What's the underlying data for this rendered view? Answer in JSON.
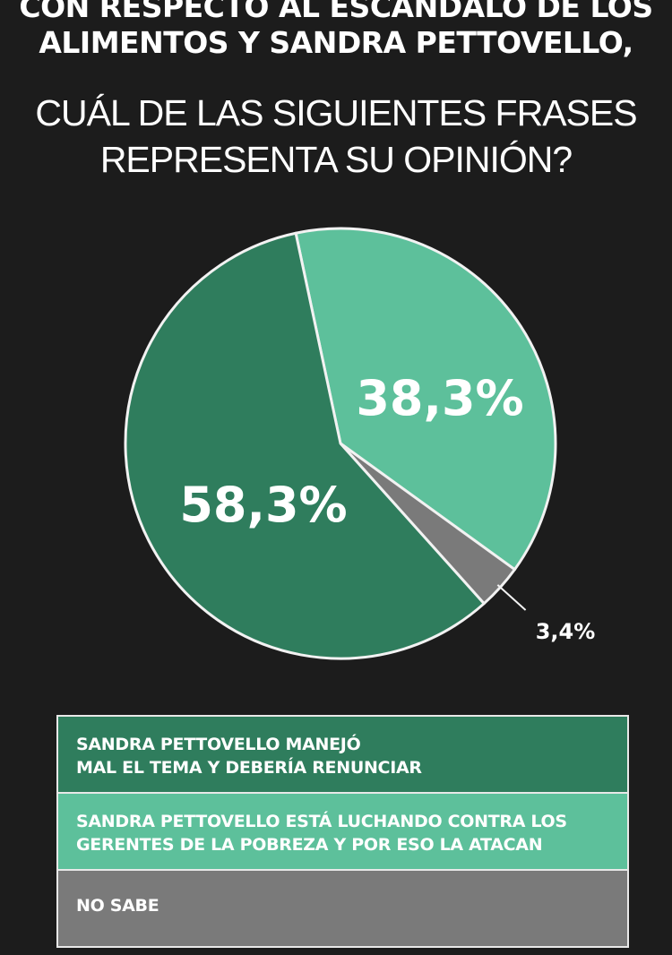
{
  "title": {
    "bold_lines": [
      "CON RESPECTO AL ESCÁNDALO DE LOS",
      "ALIMENTOS Y SANDRA PETTOVELLO,"
    ],
    "light_lines": [
      "CUÁL DE LAS SIGUIENTES FRASES",
      "REPRESENTA SU OPINIÓN?"
    ]
  },
  "chart_data": {
    "type": "pie",
    "slices": [
      {
        "label": "SANDRA PETTOVELLO MANEJÓ MAL EL TEMA Y DEBERÍA RENUNCIAR",
        "value": 58.3,
        "display": "58,3%",
        "color": "#2f7d5d"
      },
      {
        "label": "SANDRA PETTOVELLO ESTÁ LUCHANDO CONTRA LOS GERENTES DE LA POBREZA Y POR ESO LA ATACAN",
        "value": 38.3,
        "display": "38,3%",
        "color": "#5dc09b"
      },
      {
        "label": "NO SABE",
        "value": 3.4,
        "display": "3,4%",
        "color": "#7a7a7a"
      }
    ],
    "legend_position": "bottom"
  },
  "legend": {
    "items": [
      {
        "lines": [
          "SANDRA PETTOVELLO MANEJÓ",
          "MAL EL TEMA Y DEBERÍA RENUNCIAR"
        ]
      },
      {
        "lines": [
          "SANDRA PETTOVELLO ESTÁ LUCHANDO CONTRA LOS",
          "GERENTES DE LA POBREZA Y POR ESO LA ATACAN"
        ]
      },
      {
        "lines": [
          "NO SABE"
        ]
      }
    ]
  }
}
